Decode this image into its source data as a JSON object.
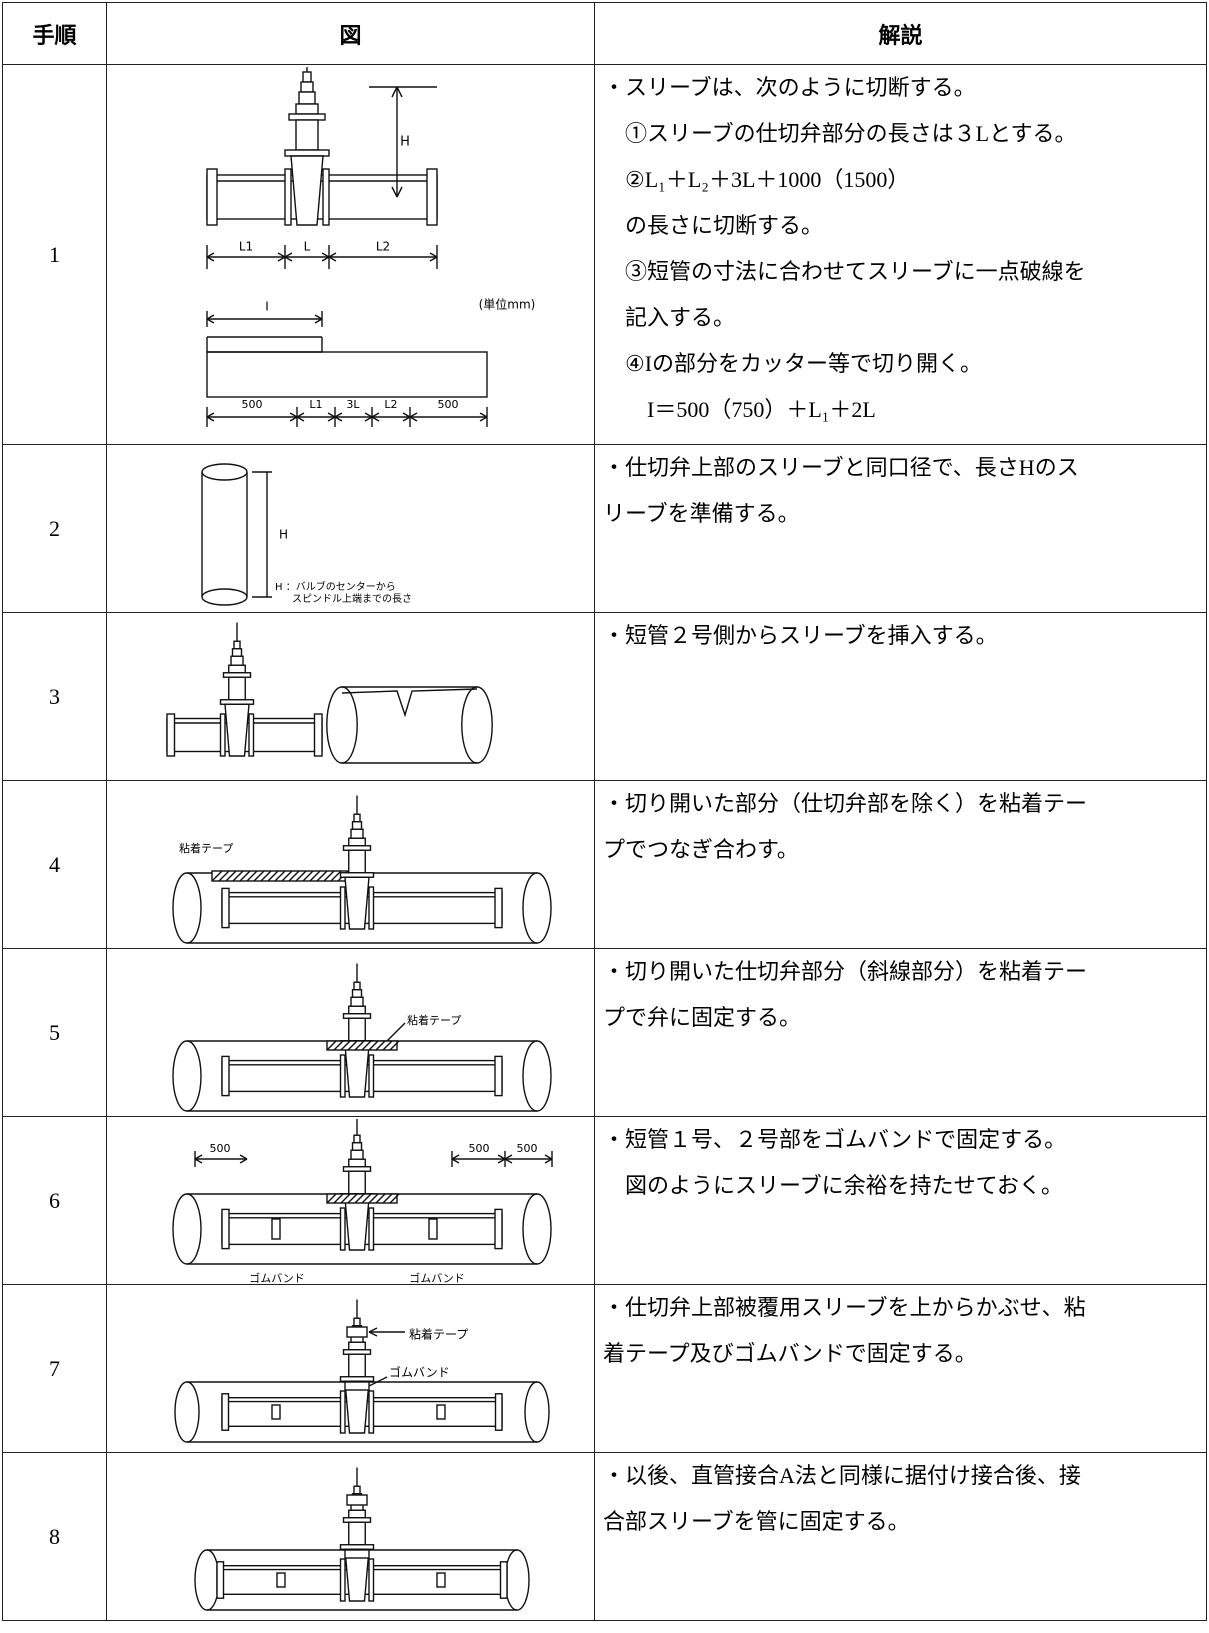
{
  "table": {
    "header": [
      "手順",
      "図",
      "解説"
    ],
    "rows": [
      {
        "step": "1",
        "figure_labels": [
          "H",
          "L1",
          "L",
          "L2",
          "(単位mm)",
          "I",
          "500",
          "L1",
          "3L",
          "L2",
          "500"
        ],
        "lines": [
          "・スリーブは、次のように切断する。",
          "①スリーブの仕切弁部分の長さは３Lとする。",
          "②L₁＋L₂＋3L＋1000（1500）",
          "の長さに切断する。",
          "③短管の寸法に合わせてスリーブに一点破線を",
          "記入する。",
          "④Iの部分をカッター等で切り開く。",
          "I＝500（750）＋L₁＋2L"
        ]
      },
      {
        "step": "2",
        "figure_labels": [
          "H",
          "H ：バルブのセンターから",
          "スピンドル上端までの長さ"
        ],
        "lines": [
          "・仕切弁上部のスリーブと同口径で、長さHのス",
          "リーブを準備する。"
        ]
      },
      {
        "step": "3",
        "figure_labels": [],
        "lines": [
          "・短管２号側からスリーブを挿入する。"
        ]
      },
      {
        "step": "4",
        "figure_labels": [
          "粘着テープ"
        ],
        "lines": [
          "・切り開いた部分（仕切弁部を除く）を粘着テー",
          "プでつなぎ合わす。"
        ]
      },
      {
        "step": "5",
        "figure_labels": [
          "粘着テープ"
        ],
        "lines": [
          "・切り開いた仕切弁部分（斜線部分）を粘着テー",
          "プで弁に固定する。"
        ]
      },
      {
        "step": "6",
        "figure_labels": [
          "500",
          "500",
          "500",
          "ゴムバンド",
          "ゴムバンド"
        ],
        "lines": [
          "・短管１号、２号部をゴムバンドで固定する。",
          "図のようにスリーブに余裕を持たせておく。"
        ]
      },
      {
        "step": "7",
        "figure_labels": [
          "粘着テープ",
          "ゴムバンド"
        ],
        "lines": [
          "・仕切弁上部被覆用スリーブを上からかぶせ、粘",
          "着テープ及びゴムバンドで固定する。"
        ]
      },
      {
        "step": "8",
        "figure_labels": [],
        "lines": [
          "・以後、直管接合A法と同様に据付け接合後、接",
          "合部スリーブを管に固定する。"
        ]
      }
    ]
  }
}
